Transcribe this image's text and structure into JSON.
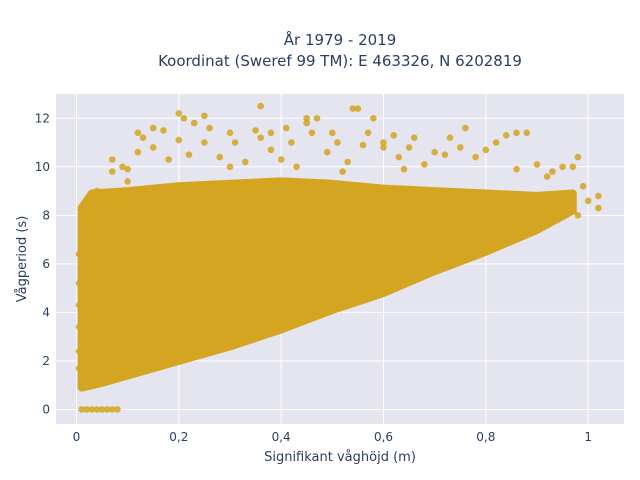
{
  "chart_data": {
    "type": "scatter",
    "title_lines": [
      "År 1979 - 2019",
      "Koordinat (Sweref 99 TM): E 463326, N 6202819"
    ],
    "xlabel": "Signifikant våghöjd (m)",
    "ylabel": "Vågperiod (s)",
    "xlim": [
      -0.04,
      1.07
    ],
    "ylim": [
      -0.6,
      13.0
    ],
    "xticks": [
      0,
      0.2,
      0.4,
      0.6,
      0.8,
      1
    ],
    "xtick_labels": [
      "0",
      "0,2",
      "0,4",
      "0,6",
      "0,8",
      "1"
    ],
    "yticks": [
      0,
      2,
      4,
      6,
      8,
      10,
      12
    ],
    "ytick_labels": [
      "0",
      "2",
      "4",
      "6",
      "8",
      "10",
      "12"
    ],
    "grid": true,
    "legend": "none",
    "colors": {
      "marker": "#D4A520",
      "plot_bg": "#E5E5F0",
      "grid": "#ffffff",
      "paper": "#ffffff"
    },
    "dense_region": [
      [
        0.01,
        0.9
      ],
      [
        0.01,
        8.3
      ],
      [
        0.03,
        8.9
      ],
      [
        0.1,
        9.0
      ],
      [
        0.2,
        9.2
      ],
      [
        0.3,
        9.3
      ],
      [
        0.4,
        9.4
      ],
      [
        0.5,
        9.3
      ],
      [
        0.6,
        9.1
      ],
      [
        0.7,
        9.0
      ],
      [
        0.8,
        8.9
      ],
      [
        0.9,
        8.8
      ],
      [
        0.97,
        8.9
      ],
      [
        0.97,
        8.2
      ],
      [
        0.9,
        7.4
      ],
      [
        0.8,
        6.5
      ],
      [
        0.7,
        5.7
      ],
      [
        0.6,
        4.8
      ],
      [
        0.5,
        4.1
      ],
      [
        0.4,
        3.3
      ],
      [
        0.3,
        2.6
      ],
      [
        0.2,
        2.0
      ],
      [
        0.1,
        1.4
      ],
      [
        0.05,
        1.1
      ]
    ],
    "points": [
      [
        0.01,
        0
      ],
      [
        0.02,
        0
      ],
      [
        0.03,
        0
      ],
      [
        0.04,
        0
      ],
      [
        0.05,
        0
      ],
      [
        0.06,
        0
      ],
      [
        0.07,
        0
      ],
      [
        0.08,
        0
      ],
      [
        0.005,
        6.4
      ],
      [
        0.005,
        5.2
      ],
      [
        0.005,
        4.3
      ],
      [
        0.005,
        3.4
      ],
      [
        0.005,
        2.4
      ],
      [
        0.005,
        1.7
      ],
      [
        0.01,
        8.0
      ],
      [
        0.02,
        8.5
      ],
      [
        0.06,
        8.8
      ],
      [
        0.09,
        8.6
      ],
      [
        0.1,
        9.4
      ],
      [
        0.1,
        9.9
      ],
      [
        0.07,
        10.3
      ],
      [
        0.09,
        10.0
      ],
      [
        0.12,
        10.6
      ],
      [
        0.12,
        11.4
      ],
      [
        0.13,
        11.2
      ],
      [
        0.15,
        11.6
      ],
      [
        0.15,
        10.8
      ],
      [
        0.17,
        11.5
      ],
      [
        0.2,
        12.2
      ],
      [
        0.21,
        12.0
      ],
      [
        0.2,
        11.1
      ],
      [
        0.22,
        10.5
      ],
      [
        0.23,
        11.8
      ],
      [
        0.25,
        11.0
      ],
      [
        0.26,
        11.6
      ],
      [
        0.28,
        10.4
      ],
      [
        0.3,
        11.4
      ],
      [
        0.31,
        11.0
      ],
      [
        0.33,
        10.2
      ],
      [
        0.35,
        11.5
      ],
      [
        0.36,
        11.2
      ],
      [
        0.38,
        10.7
      ],
      [
        0.38,
        11.4
      ],
      [
        0.4,
        10.3
      ],
      [
        0.41,
        11.6
      ],
      [
        0.42,
        11.0
      ],
      [
        0.43,
        10.0
      ],
      [
        0.45,
        11.8
      ],
      [
        0.46,
        11.4
      ],
      [
        0.47,
        12.0
      ],
      [
        0.49,
        10.6
      ],
      [
        0.5,
        11.4
      ],
      [
        0.51,
        11.0
      ],
      [
        0.53,
        10.2
      ],
      [
        0.54,
        12.4
      ],
      [
        0.55,
        12.4
      ],
      [
        0.56,
        10.9
      ],
      [
        0.57,
        11.4
      ],
      [
        0.58,
        12.0
      ],
      [
        0.6,
        11.0
      ],
      [
        0.62,
        11.3
      ],
      [
        0.63,
        10.4
      ],
      [
        0.65,
        10.8
      ],
      [
        0.66,
        11.2
      ],
      [
        0.68,
        10.1
      ],
      [
        0.7,
        10.6
      ],
      [
        0.73,
        11.2
      ],
      [
        0.75,
        10.8
      ],
      [
        0.76,
        11.6
      ],
      [
        0.78,
        10.4
      ],
      [
        0.8,
        10.7
      ],
      [
        0.82,
        11.0
      ],
      [
        0.84,
        11.3
      ],
      [
        0.86,
        11.4
      ],
      [
        0.88,
        11.4
      ],
      [
        0.9,
        10.1
      ],
      [
        0.93,
        9.8
      ],
      [
        0.95,
        10.0
      ],
      [
        0.97,
        10.0
      ],
      [
        0.98,
        10.4
      ],
      [
        0.99,
        9.2
      ],
      [
        1.0,
        8.6
      ],
      [
        1.02,
        8.3
      ],
      [
        1.02,
        8.8
      ],
      [
        0.98,
        8.0
      ],
      [
        0.36,
        12.5
      ],
      [
        0.45,
        12.0
      ],
      [
        0.25,
        12.1
      ],
      [
        0.6,
        10.8
      ],
      [
        0.72,
        10.5
      ],
      [
        0.86,
        9.9
      ],
      [
        0.92,
        9.6
      ],
      [
        0.64,
        9.9
      ],
      [
        0.52,
        9.8
      ],
      [
        0.3,
        10.0
      ],
      [
        0.18,
        10.3
      ],
      [
        0.07,
        9.8
      ],
      [
        0.04,
        9.0
      ]
    ]
  }
}
